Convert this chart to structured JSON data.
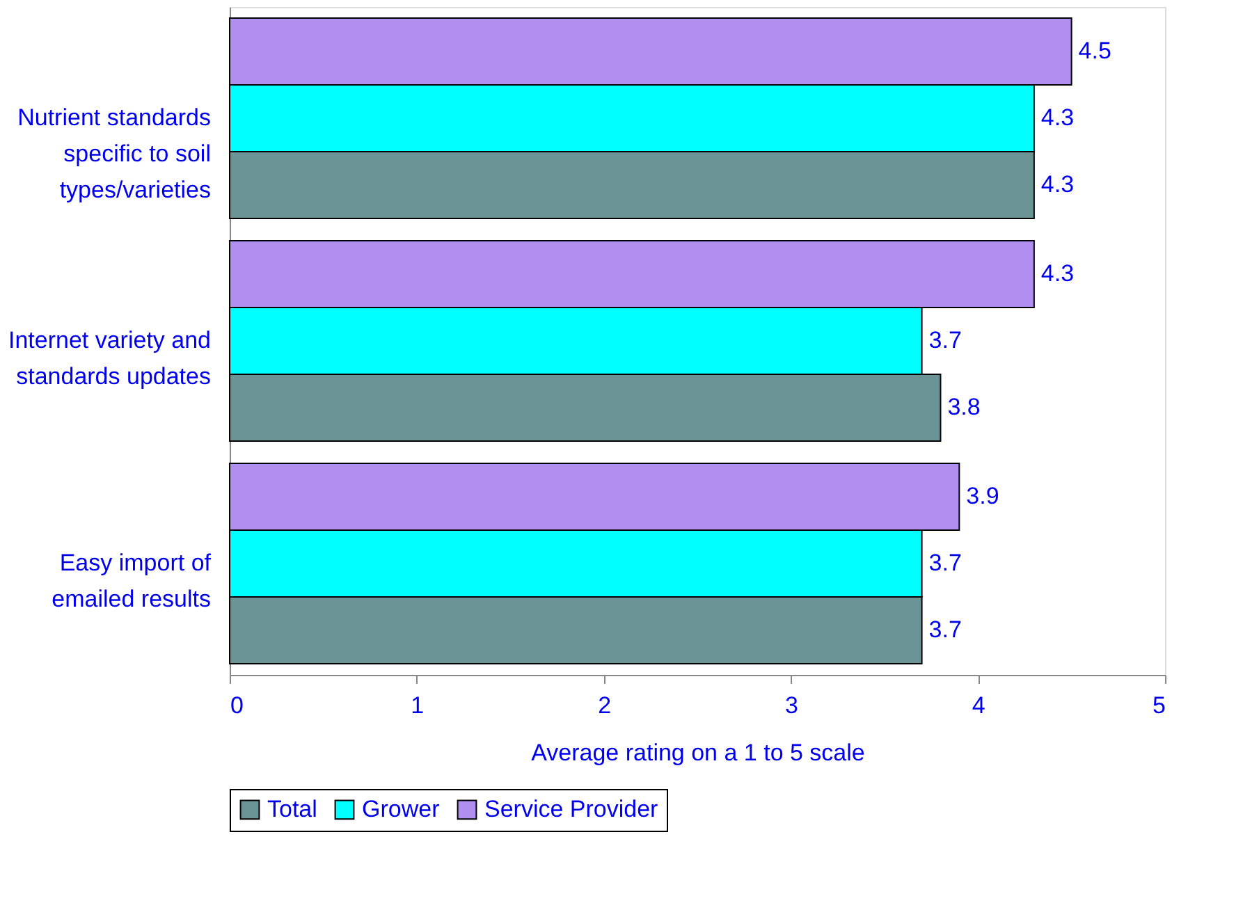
{
  "chart_data": {
    "type": "bar",
    "orientation": "horizontal",
    "xlabel": "Average rating on a 1 to 5 scale",
    "categories": [
      "Nutrient standards specific to soil types/varieties",
      "Internet variety and standards updates",
      "Easy import of emailed results"
    ],
    "series": [
      {
        "name": "Total",
        "color": "#6a9496",
        "values": [
          4.3,
          3.8,
          3.7
        ]
      },
      {
        "name": "Grower",
        "color": "#00ffff",
        "values": [
          4.3,
          3.7,
          3.7
        ]
      },
      {
        "name": "Service Provider",
        "color": "#b08ff0",
        "values": [
          4.5,
          4.3,
          3.9
        ]
      }
    ],
    "xlim": [
      0,
      5
    ],
    "xticks": [
      0,
      1,
      2,
      3,
      4,
      5
    ],
    "grid": false,
    "legend": "bottom",
    "data_labels": true
  }
}
